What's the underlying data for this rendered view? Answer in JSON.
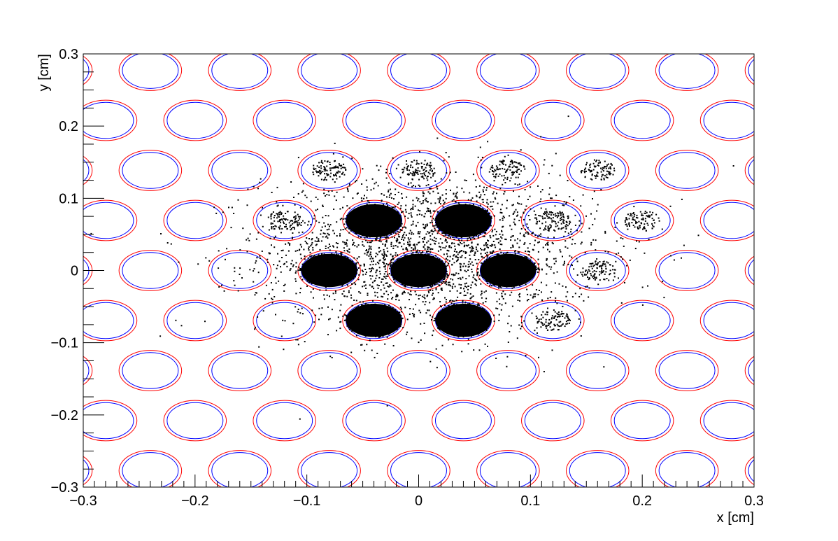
{
  "chart_data": {
    "type": "scatter",
    "title": "",
    "xlabel": "x [cm]",
    "ylabel": "y [cm]",
    "xlim": [
      -0.3,
      0.3
    ],
    "ylim": [
      -0.3,
      0.3
    ],
    "x_tick_labels": [
      "−0.3",
      "−0.2",
      "−0.1",
      "0",
      "0.1",
      "0.2",
      "0.3"
    ],
    "x_tick_values": [
      -0.3,
      -0.2,
      -0.1,
      0,
      0.1,
      0.2,
      0.3
    ],
    "y_tick_labels": [
      "−0.3",
      "−0.2",
      "−0.1",
      "0",
      "0.1",
      "0.2",
      "0.3"
    ],
    "y_tick_values": [
      -0.3,
      -0.2,
      -0.1,
      0,
      0.1,
      0.2,
      0.3
    ],
    "grid": false,
    "legend": "none",
    "hole_pattern": {
      "pitch_x": 0.08,
      "row_spacing_y": 0.0693,
      "outer_radius": 0.028,
      "inner_radius": 0.025,
      "outer_color": "#ff0000",
      "inner_color": "#0000ff"
    },
    "point_color": "#000000",
    "electron_cloud": {
      "center": [
        0.01,
        0.025
      ],
      "spread_x": 0.075,
      "spread_y": 0.055
    },
    "dense_hole_centers": [
      [
        -0.04,
        0.069
      ],
      [
        0.04,
        0.069
      ],
      [
        -0.08,
        0
      ],
      [
        0,
        0
      ],
      [
        0.08,
        0
      ],
      [
        -0.04,
        -0.069
      ],
      [
        0.04,
        -0.069
      ],
      [
        0.12,
        0.069
      ],
      [
        0.12,
        -0.069
      ],
      [
        -0.12,
        0.069
      ],
      [
        0.16,
        0
      ],
      [
        0.2,
        0.069
      ],
      [
        -0.08,
        0.139
      ],
      [
        0,
        0.139
      ],
      [
        0.08,
        0.139
      ],
      [
        0.16,
        0.139
      ]
    ]
  }
}
